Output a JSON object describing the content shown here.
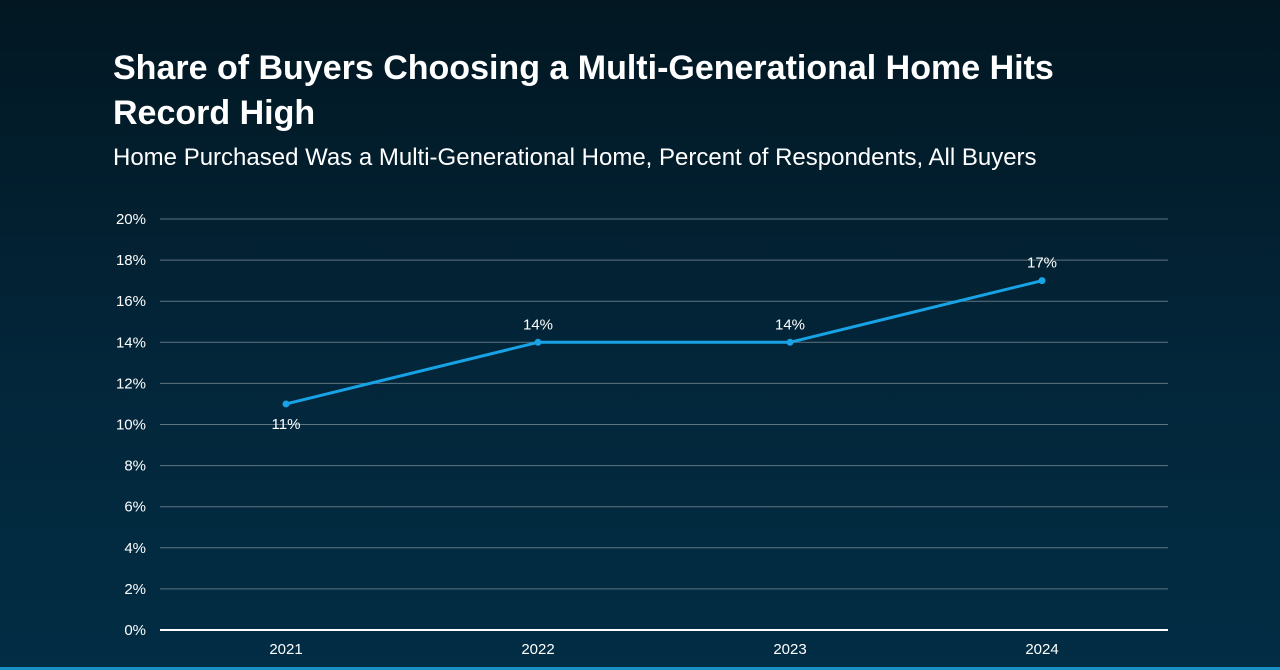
{
  "chart_data": {
    "type": "line",
    "title": "Share of Buyers Choosing a Multi-Generational Home Hits Record High",
    "subtitle": "Home Purchased Was a Multi-Generational Home, Percent of Respondents, All Buyers",
    "categories": [
      "2021",
      "2022",
      "2023",
      "2024"
    ],
    "values": [
      11,
      14,
      14,
      17
    ],
    "data_labels": [
      "11%",
      "14%",
      "14%",
      "17%"
    ],
    "ylim": [
      0,
      20
    ],
    "yticks": [
      0,
      2,
      4,
      6,
      8,
      10,
      12,
      14,
      16,
      18,
      20
    ],
    "ytick_labels": [
      "0%",
      "2%",
      "4%",
      "6%",
      "8%",
      "10%",
      "12%",
      "14%",
      "16%",
      "18%",
      "20%"
    ],
    "xlabel": "",
    "ylabel": "",
    "grid": true,
    "legend": "none",
    "line_color": "#17a3e6",
    "grid_color": "#5f7482",
    "axis_color": "#ffffff"
  }
}
